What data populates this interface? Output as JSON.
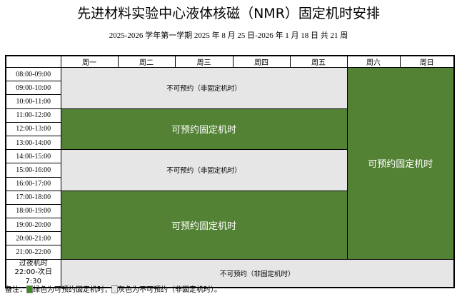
{
  "title": "先进材料实验中心液体核磁（NMR）固定机时安排",
  "subtitle": "2025-2026 学年第一学期  2025 年 8 月 25 日-2026 年 1 月 18 日  共 21 周",
  "days": [
    "周一",
    "周二",
    "周三",
    "周四",
    "周五",
    "周六",
    "周日"
  ],
  "times": [
    "08:00-09:00",
    "09:00-10:00",
    "10:00-11:00",
    "11:00-12:00",
    "12:00-13:00",
    "13:00-14:00",
    "14:00-15:00",
    "15:00-16:00",
    "16:00-17:00",
    "17:00-18:00",
    "18:00-19:00",
    "19:00-20:00",
    "20:00-21:00",
    "21:00-22:00"
  ],
  "overnight": {
    "line1": "过夜机时",
    "line2": "22:00-次日",
    "line3": "7:30"
  },
  "labels": {
    "available": "可预约固定机时",
    "unavailable": "不可预约（非固定机时）"
  },
  "colors": {
    "available": "#548235",
    "unavailable": "#e7e6e6"
  },
  "note": {
    "prefix": "备注：",
    "green": "绿色为可预约固定机时；",
    "gray": "灰色为不可预约（非固定机时）。"
  }
}
